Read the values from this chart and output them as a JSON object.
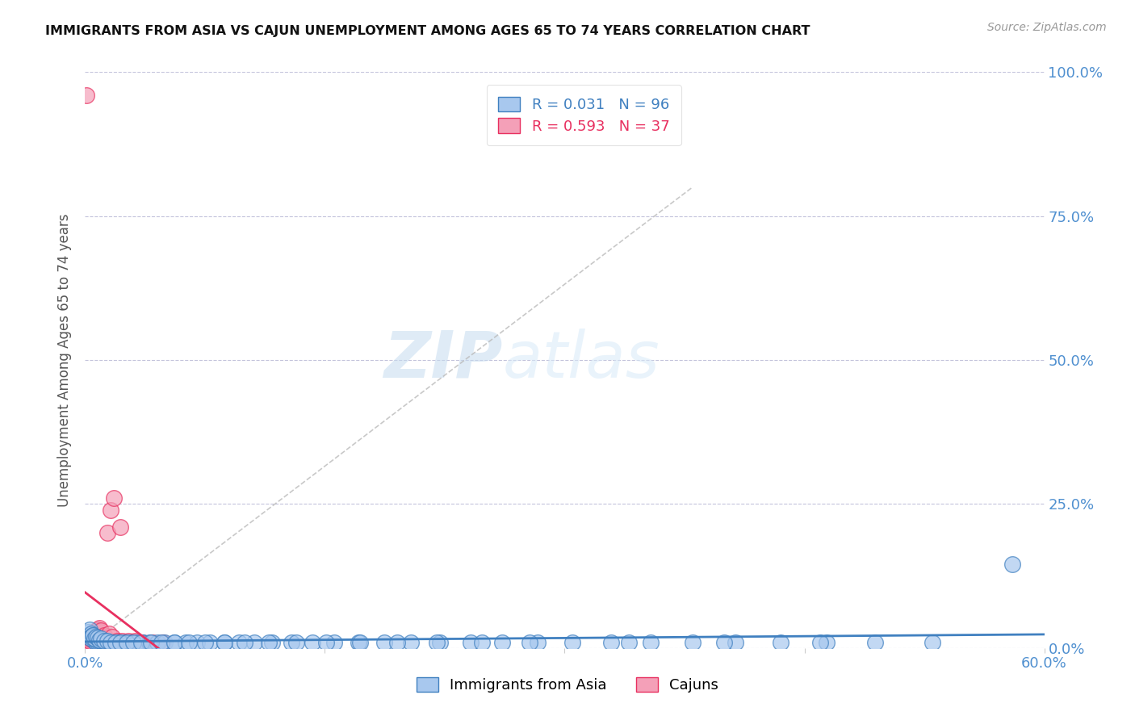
{
  "title": "IMMIGRANTS FROM ASIA VS CAJUN UNEMPLOYMENT AMONG AGES 65 TO 74 YEARS CORRELATION CHART",
  "source": "Source: ZipAtlas.com",
  "ylabel": "Unemployment Among Ages 65 to 74 years",
  "xlim": [
    0.0,
    0.6
  ],
  "ylim": [
    0.0,
    1.0
  ],
  "ytick_positions": [
    0.0,
    0.25,
    0.5,
    0.75,
    1.0
  ],
  "ytick_labels": [
    "0.0%",
    "25.0%",
    "50.0%",
    "75.0%",
    "100.0%"
  ],
  "xtick_positions": [
    0.0,
    0.15,
    0.3,
    0.45,
    0.6
  ],
  "xtick_labels": [
    "0.0%",
    "",
    "",
    "",
    "60.0%"
  ],
  "blue_R": 0.031,
  "blue_N": 96,
  "pink_R": 0.593,
  "pink_N": 37,
  "blue_color": "#A8C8EE",
  "pink_color": "#F4A0B8",
  "blue_line_color": "#4080C0",
  "pink_line_color": "#E83060",
  "background_color": "#FFFFFF",
  "watermark_zip": "ZIP",
  "watermark_atlas": "atlas",
  "legend_blue_label": "Immigrants from Asia",
  "legend_pink_label": "Cajuns",
  "blue_scatter_x": [
    0.002,
    0.003,
    0.003,
    0.004,
    0.004,
    0.005,
    0.005,
    0.006,
    0.006,
    0.007,
    0.007,
    0.008,
    0.008,
    0.009,
    0.009,
    0.01,
    0.01,
    0.011,
    0.011,
    0.012,
    0.013,
    0.014,
    0.015,
    0.016,
    0.018,
    0.02,
    0.022,
    0.025,
    0.028,
    0.032,
    0.036,
    0.04,
    0.045,
    0.05,
    0.056,
    0.063,
    0.07,
    0.078,
    0.087,
    0.096,
    0.106,
    0.117,
    0.129,
    0.142,
    0.156,
    0.171,
    0.187,
    0.204,
    0.222,
    0.241,
    0.261,
    0.283,
    0.305,
    0.329,
    0.354,
    0.38,
    0.407,
    0.435,
    0.464,
    0.494,
    0.003,
    0.004,
    0.005,
    0.006,
    0.007,
    0.008,
    0.009,
    0.01,
    0.012,
    0.014,
    0.016,
    0.019,
    0.022,
    0.026,
    0.03,
    0.035,
    0.041,
    0.048,
    0.056,
    0.065,
    0.075,
    0.087,
    0.1,
    0.115,
    0.132,
    0.151,
    0.172,
    0.195,
    0.22,
    0.248,
    0.278,
    0.34,
    0.4,
    0.46,
    0.53,
    0.58
  ],
  "blue_scatter_y": [
    0.028,
    0.022,
    0.032,
    0.018,
    0.025,
    0.015,
    0.022,
    0.012,
    0.02,
    0.01,
    0.018,
    0.01,
    0.016,
    0.01,
    0.014,
    0.01,
    0.012,
    0.01,
    0.012,
    0.01,
    0.01,
    0.01,
    0.01,
    0.01,
    0.01,
    0.01,
    0.01,
    0.01,
    0.01,
    0.01,
    0.01,
    0.01,
    0.01,
    0.01,
    0.01,
    0.01,
    0.01,
    0.01,
    0.01,
    0.01,
    0.01,
    0.01,
    0.01,
    0.01,
    0.01,
    0.01,
    0.01,
    0.01,
    0.01,
    0.01,
    0.01,
    0.01,
    0.01,
    0.01,
    0.01,
    0.01,
    0.01,
    0.01,
    0.01,
    0.01,
    0.018,
    0.02,
    0.022,
    0.016,
    0.02,
    0.018,
    0.014,
    0.016,
    0.012,
    0.012,
    0.01,
    0.01,
    0.01,
    0.01,
    0.01,
    0.01,
    0.01,
    0.01,
    0.01,
    0.01,
    0.01,
    0.01,
    0.01,
    0.01,
    0.01,
    0.01,
    0.01,
    0.01,
    0.01,
    0.01,
    0.01,
    0.01,
    0.01,
    0.01,
    0.01,
    0.145
  ],
  "pink_scatter_x": [
    0.001,
    0.002,
    0.002,
    0.003,
    0.003,
    0.004,
    0.004,
    0.005,
    0.005,
    0.006,
    0.006,
    0.007,
    0.007,
    0.008,
    0.008,
    0.009,
    0.009,
    0.01,
    0.011,
    0.012,
    0.013,
    0.015,
    0.017,
    0.02,
    0.023,
    0.027,
    0.031,
    0.036,
    0.042,
    0.049,
    0.014,
    0.016,
    0.018,
    0.022,
    0.026,
    0.03,
    0.001
  ],
  "pink_scatter_y": [
    0.01,
    0.01,
    0.015,
    0.012,
    0.018,
    0.015,
    0.02,
    0.018,
    0.025,
    0.02,
    0.028,
    0.022,
    0.03,
    0.025,
    0.032,
    0.028,
    0.035,
    0.03,
    0.02,
    0.022,
    0.018,
    0.025,
    0.02,
    0.012,
    0.012,
    0.012,
    0.012,
    0.01,
    0.01,
    0.01,
    0.2,
    0.24,
    0.26,
    0.21,
    0.01,
    0.01,
    0.96
  ],
  "diag_line_x0": 0.0,
  "diag_line_y0": 0.0,
  "diag_line_x1": 0.38,
  "diag_line_y1": 0.8
}
